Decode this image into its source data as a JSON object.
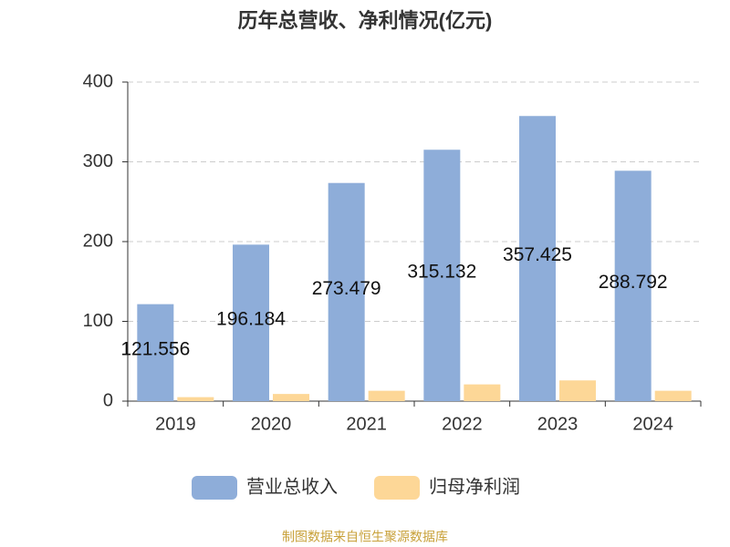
{
  "chart_data": {
    "type": "bar",
    "title": "历年总营收、净利情况(亿元)",
    "categories": [
      "2019",
      "2020",
      "2021",
      "2022",
      "2023",
      "2024"
    ],
    "series": [
      {
        "name": "营业总收入",
        "color": "#8eadd9",
        "values": [
          121.556,
          196.184,
          273.479,
          315.132,
          357.425,
          288.792
        ],
        "show_labels": true
      },
      {
        "name": "归母净利润",
        "color": "#fdd797",
        "values": [
          5,
          9,
          13,
          21,
          26,
          13
        ],
        "show_labels": false
      }
    ],
    "ylim": [
      0,
      400
    ],
    "yticks": [
      0,
      100,
      200,
      300,
      400
    ],
    "grid": true,
    "legend": "bottom",
    "source": "制图数据来自恒生聚源数据库"
  }
}
